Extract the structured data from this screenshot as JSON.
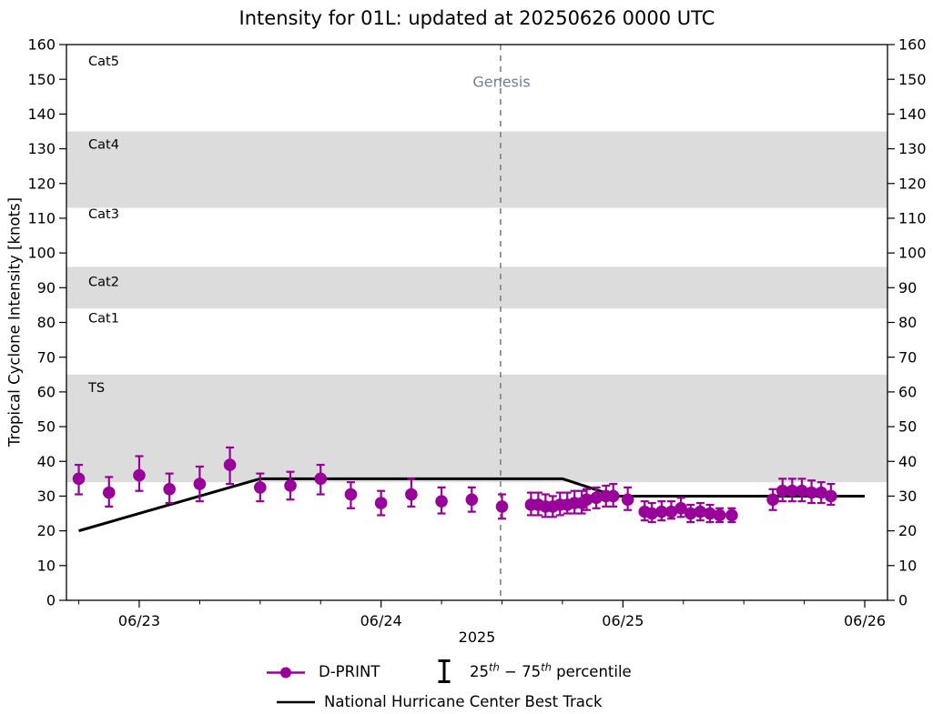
{
  "colors": {
    "dprint": "#990099",
    "best_track": "#000000",
    "band": "#DCDCDC",
    "genesis_line": "#808080",
    "genesis_text": "#708090",
    "axis": "#000000",
    "background": "#ffffff"
  },
  "legend": {
    "dprint": "D-PRINT",
    "percentile": {
      "a": "25",
      "asup": "th",
      "b": " − 75",
      "bsup": "th",
      "c": " percentile"
    },
    "best_track": "National Hurricane Center Best Track"
  },
  "chart_data": {
    "type": "scatter",
    "title": "Intensity for 01L: updated at 20250626 0000 UTC",
    "xlabel": "2025",
    "ylabel": "Tropical Cyclone Intensity [knots]",
    "ylim": [
      0,
      160
    ],
    "xlim_days_rel_0623": [
      -0.301,
      3.094
    ],
    "grid": false,
    "legend_position": "below",
    "y_ticks": [
      0,
      10,
      20,
      30,
      40,
      50,
      60,
      70,
      80,
      90,
      100,
      110,
      120,
      130,
      140,
      150,
      160
    ],
    "y_ticks_both_sides": true,
    "x_axis": {
      "unit": "date in 2025, UTC, days measured from 06/23 00:00",
      "major_ticks": [
        {
          "day": 0,
          "label": "06/23"
        },
        {
          "day": 1,
          "label": "06/24"
        },
        {
          "day": 2,
          "label": "06/25"
        },
        {
          "day": 3,
          "label": "06/26"
        }
      ],
      "minor_tick_interval_days": 0.25
    },
    "category_bands": [
      {
        "label": "TS",
        "from": 34,
        "to": 65,
        "shaded": true,
        "label_at": 60
      },
      {
        "label": "Cat1",
        "from": 65,
        "to": 84,
        "shaded": false,
        "label_at": 80
      },
      {
        "label": "Cat2",
        "from": 84,
        "to": 96,
        "shaded": true,
        "label_at": 90.5
      },
      {
        "label": "Cat3",
        "from": 96,
        "to": 113,
        "shaded": false,
        "label_at": 110
      },
      {
        "label": "Cat4",
        "from": 113,
        "to": 135,
        "shaded": true,
        "label_at": 130
      },
      {
        "label": "Cat5",
        "from": 135,
        "to": 160,
        "shaded": false,
        "label_at": 154
      }
    ],
    "genesis": {
      "day": 1.494,
      "label": "Genesis"
    },
    "point_format": [
      "days_after_2025-06-23_00UTC",
      "intensity_kt",
      "p25_kt",
      "p75_kt"
    ],
    "series": [
      {
        "name": "D-PRINT",
        "style": "points_with_errorbars",
        "points": [
          [
            -0.25,
            35,
            30.5,
            39
          ],
          [
            -0.125,
            31,
            27,
            35.5
          ],
          [
            0.0,
            36,
            31.5,
            41.5
          ],
          [
            0.125,
            32,
            28,
            36.5
          ],
          [
            0.25,
            33.5,
            28.5,
            38.5
          ],
          [
            0.375,
            39,
            33.5,
            44
          ],
          [
            0.5,
            32.5,
            28.5,
            36.5
          ],
          [
            0.625,
            33,
            29,
            37
          ],
          [
            0.75,
            35,
            30.5,
            39
          ],
          [
            0.875,
            30.5,
            26.5,
            34
          ],
          [
            1.0,
            28,
            24.5,
            31.5
          ],
          [
            1.125,
            30.5,
            27,
            35
          ],
          [
            1.25,
            28.5,
            25,
            32.5
          ],
          [
            1.375,
            29,
            25.5,
            32.5
          ],
          [
            1.5,
            27,
            23.5,
            30.5
          ],
          [
            1.62,
            27.5,
            24.5,
            31
          ],
          [
            1.65,
            27.5,
            24.5,
            31
          ],
          [
            1.68,
            27,
            24,
            30.5
          ],
          [
            1.71,
            27,
            24,
            30
          ],
          [
            1.74,
            27.5,
            24.5,
            31
          ],
          [
            1.77,
            27.5,
            25,
            31
          ],
          [
            1.8,
            28,
            25,
            31.5
          ],
          [
            1.83,
            28,
            25,
            31.5
          ],
          [
            1.85,
            29,
            26,
            32
          ],
          [
            1.89,
            29.5,
            26.5,
            32.5
          ],
          [
            1.93,
            30,
            27,
            33
          ],
          [
            1.96,
            30,
            27,
            33.5
          ],
          [
            2.02,
            29,
            26,
            32.5
          ],
          [
            2.09,
            25.5,
            23,
            28.5
          ],
          [
            2.12,
            25,
            22.5,
            28
          ],
          [
            2.16,
            25.5,
            23,
            28.5
          ],
          [
            2.2,
            25.5,
            23.5,
            28.5
          ],
          [
            2.24,
            26.5,
            24,
            29.5
          ],
          [
            2.28,
            25,
            22.5,
            27.5
          ],
          [
            2.32,
            25.5,
            23,
            28
          ],
          [
            2.36,
            25,
            22.5,
            27.5
          ],
          [
            2.4,
            24.5,
            22.5,
            26.5
          ],
          [
            2.45,
            24.5,
            22.5,
            26.5
          ],
          [
            2.62,
            29,
            26,
            32
          ],
          [
            2.66,
            31.5,
            28.5,
            35
          ],
          [
            2.7,
            31.5,
            28.5,
            35
          ],
          [
            2.74,
            31.5,
            28.5,
            35
          ],
          [
            2.78,
            31,
            28,
            34.5
          ],
          [
            2.82,
            31,
            28,
            34
          ],
          [
            2.86,
            30,
            27.5,
            33.5
          ]
        ]
      },
      {
        "name": "National Hurricane Center Best Track",
        "style": "line",
        "points": [
          [
            -0.25,
            20
          ],
          [
            0.5,
            35
          ],
          [
            1.75,
            35
          ],
          [
            1.97,
            30
          ],
          [
            3.0,
            30
          ]
        ]
      }
    ]
  }
}
